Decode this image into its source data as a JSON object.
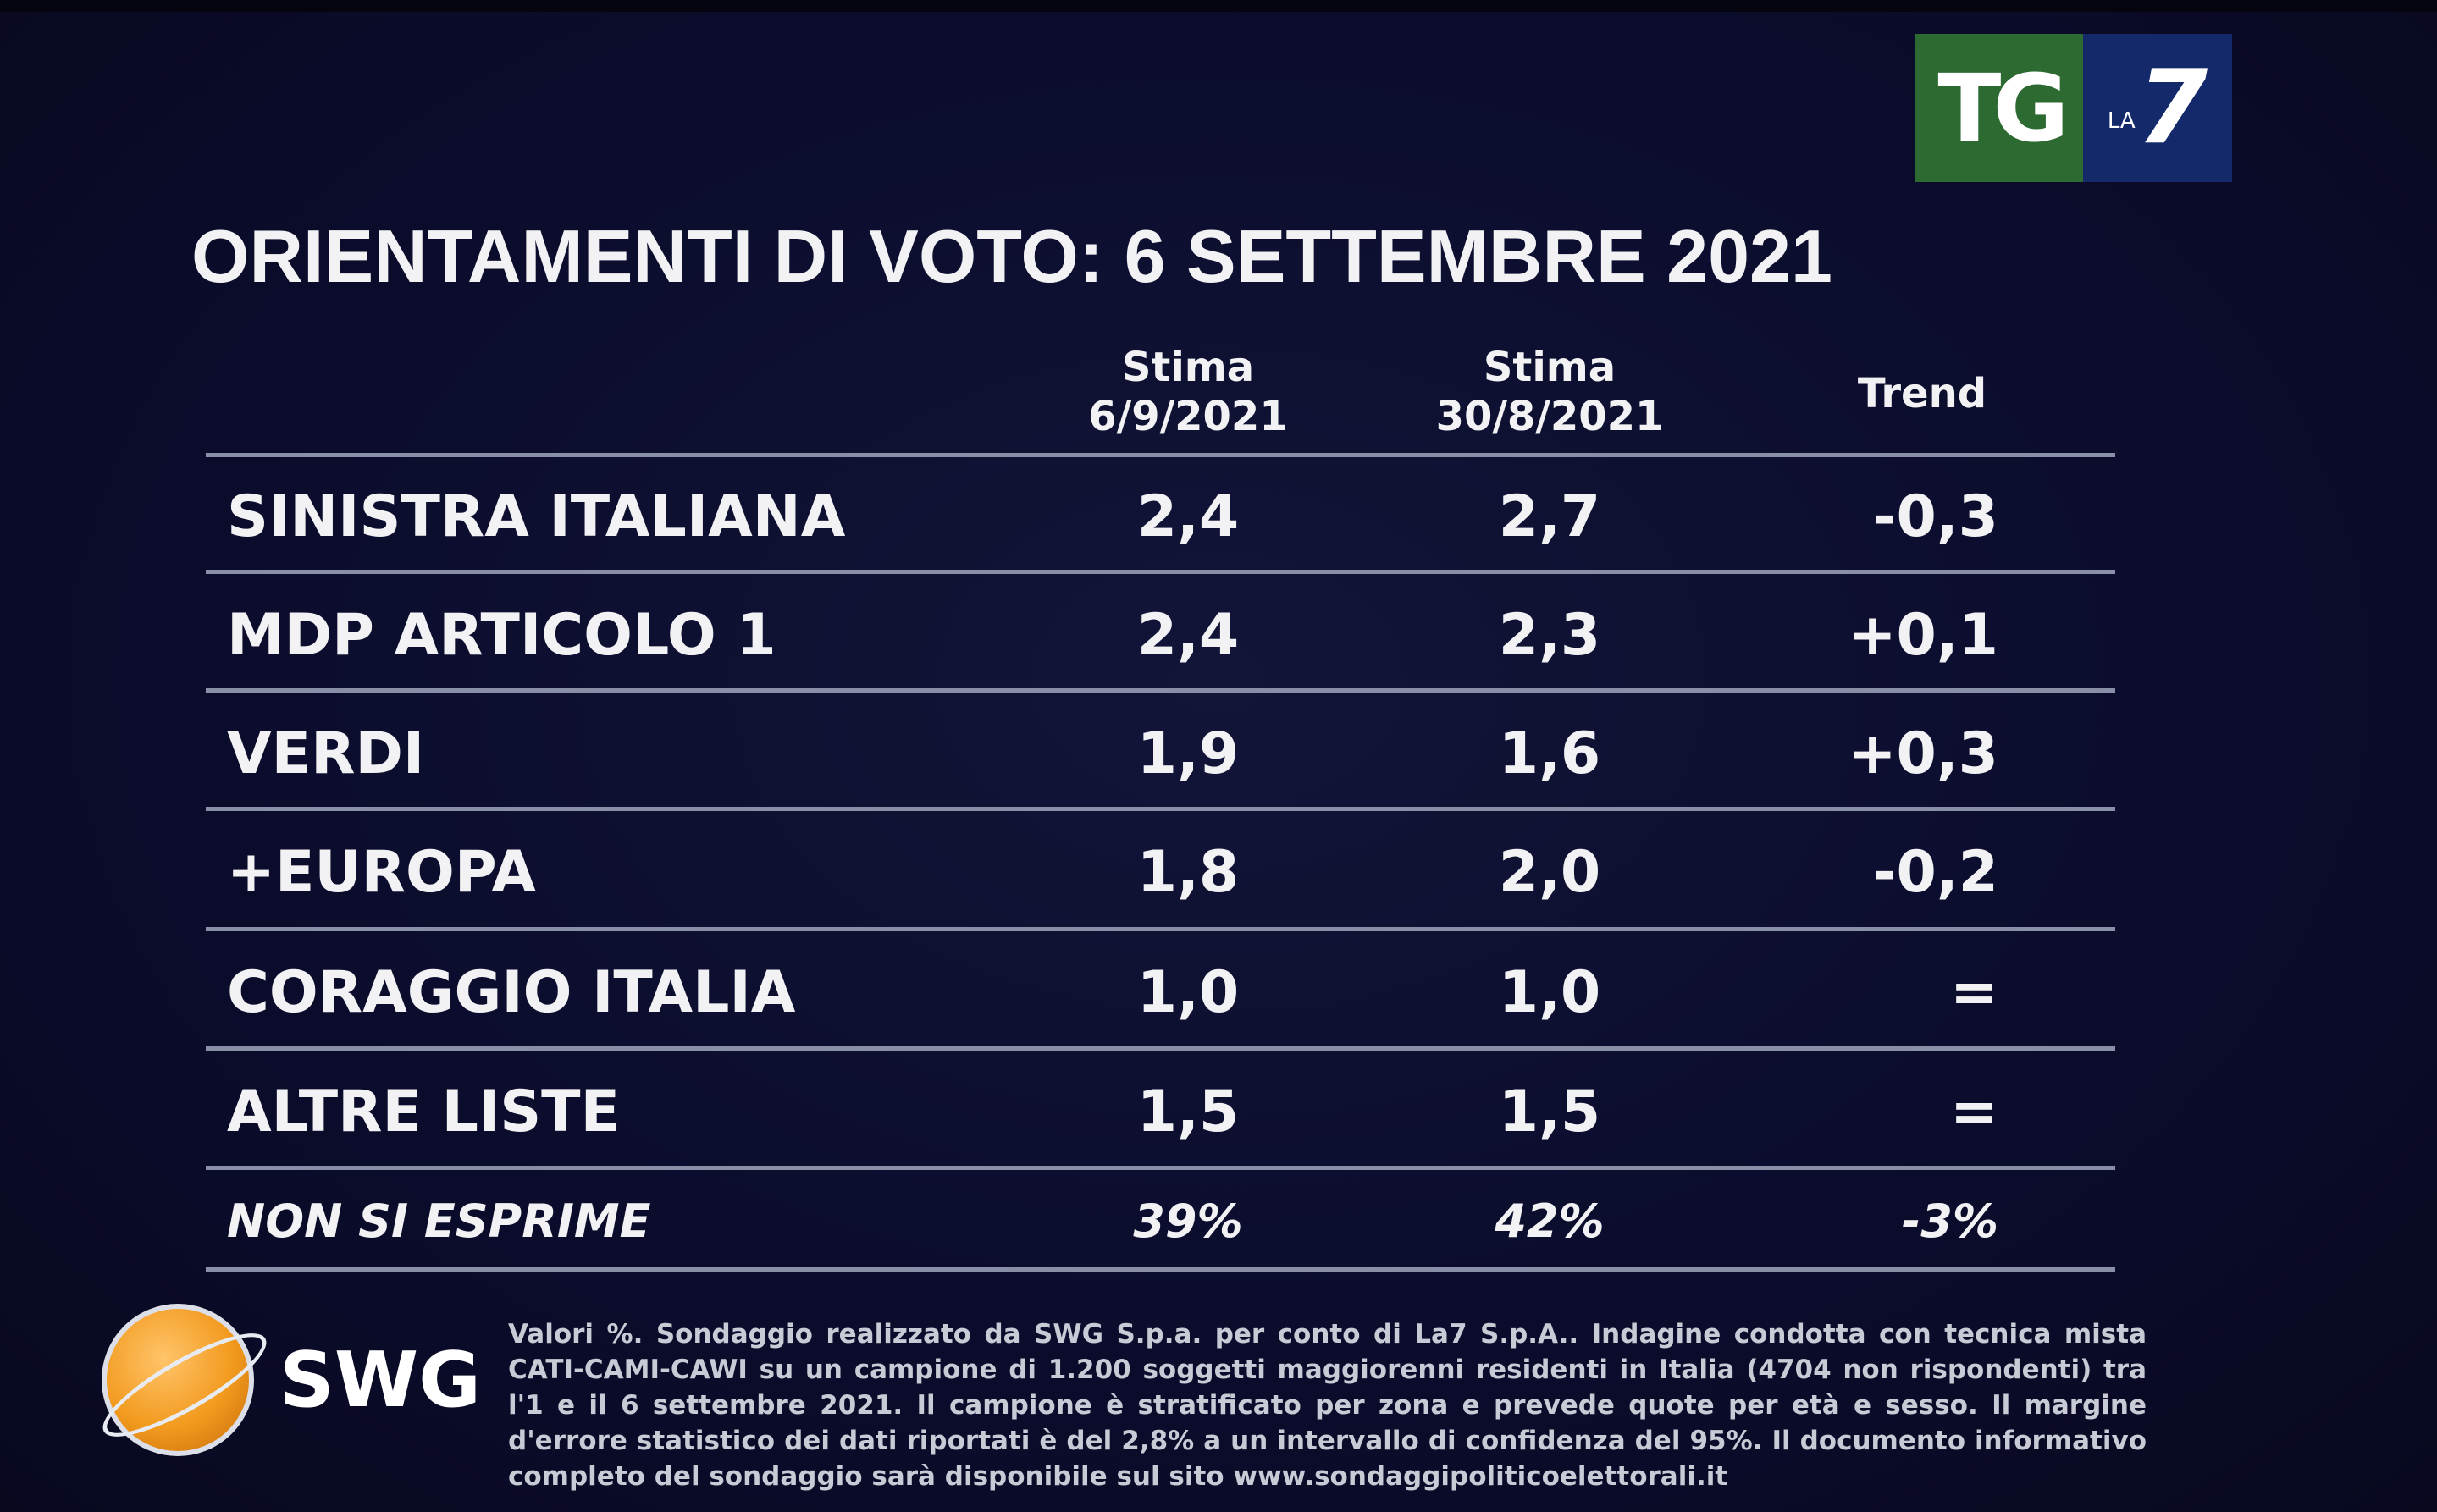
{
  "title": "ORIENTAMENTI DI VOTO: 6 SETTEMBRE 2021",
  "logo": {
    "tg": "TG",
    "la": "LA",
    "seven": "7"
  },
  "columns": [
    {
      "line1": "Stima",
      "line2": "6/9/2021"
    },
    {
      "line1": "Stima",
      "line2": "30/8/2021"
    },
    {
      "line1": "Trend"
    }
  ],
  "rows": [
    {
      "party": "SINISTRA ITALIANA",
      "current": "2,4",
      "previous": "2,7",
      "trend": "-0,3"
    },
    {
      "party": "MDP ARTICOLO 1",
      "current": "2,4",
      "previous": "2,3",
      "trend": "+0,1"
    },
    {
      "party": "VERDI",
      "current": "1,9",
      "previous": "1,6",
      "trend": "+0,3"
    },
    {
      "party": "+EUROPA",
      "current": "1,8",
      "previous": "2,0",
      "trend": "-0,2"
    },
    {
      "party": "CORAGGIO ITALIA",
      "current": "1,0",
      "previous": "1,0",
      "trend": "="
    },
    {
      "party": "ALTRE LISTE",
      "current": "1,5",
      "previous": "1,5",
      "trend": "="
    },
    {
      "party": "NON SI ESPRIME",
      "current": "39%",
      "previous": "42%",
      "trend": "-3%"
    }
  ],
  "swg_logo": "SWG",
  "footnote": "Valori %. Sondaggio realizzato da SWG S.p.a. per conto di La7 S.p.A.. Indagine condotta con tecnica mista CATI-CAMI-CAWI su un campione di 1.200 soggetti maggiorenni residenti in Italia (4704 non rispondenti) tra l'1 e il 6 settembre 2021. Il campione è stratificato per zona e prevede quote per età e sesso. Il margine d'errore statistico dei dati riportati è del 2,8% a un intervallo di confidenza del 95%. Il documento informativo completo del sondaggio sarà disponibile sul sito www.sondaggipoliticoelettorali.it"
}
